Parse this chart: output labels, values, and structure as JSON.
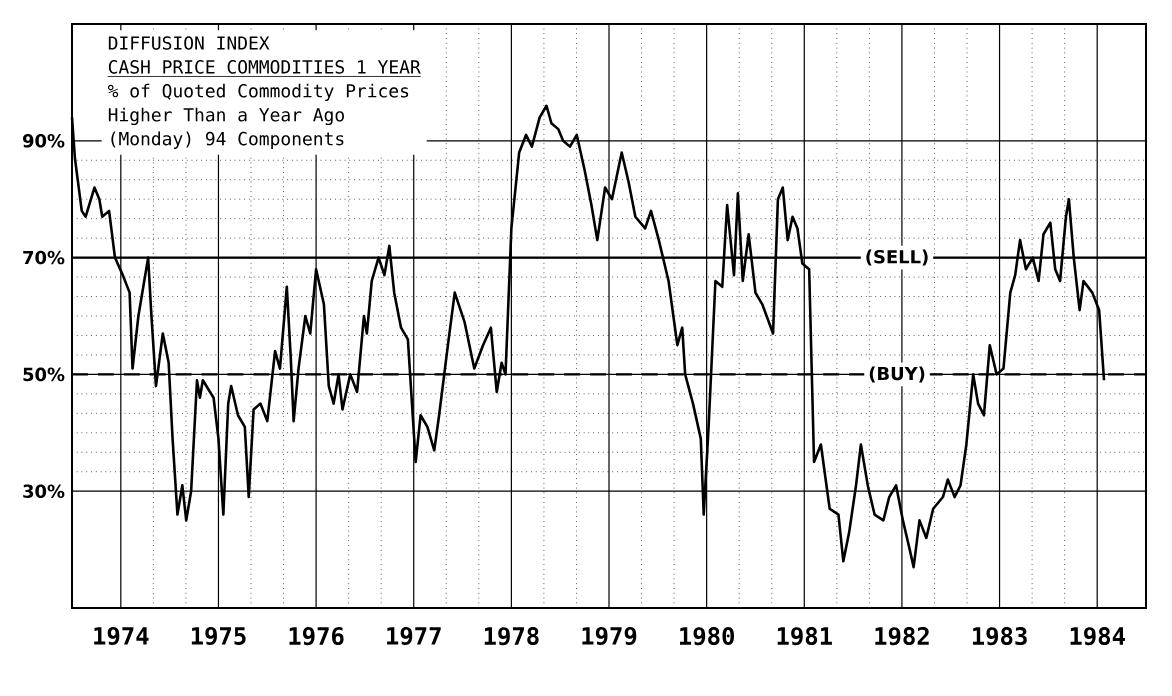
{
  "chart_data": {
    "type": "line",
    "title": "DIFFUSION INDEX",
    "subtitle": "CASH PRICE COMMODITIES 1 YEAR",
    "annotations": [
      "% of Quoted Commodity Prices",
      "Higher Than a Year Ago",
      "(Monday) 94 Components"
    ],
    "xlim": [
      1974,
      1985
    ],
    "ylim": [
      10,
      110
    ],
    "xticks": [
      {
        "value": 1974.5,
        "label": "1974"
      },
      {
        "value": 1975.5,
        "label": "1975"
      },
      {
        "value": 1976.5,
        "label": "1976"
      },
      {
        "value": 1977.5,
        "label": "1977"
      },
      {
        "value": 1978.5,
        "label": "1978"
      },
      {
        "value": 1979.5,
        "label": "1979"
      },
      {
        "value": 1980.5,
        "label": "1980"
      },
      {
        "value": 1981.5,
        "label": "1981"
      },
      {
        "value": 1982.5,
        "label": "1982"
      },
      {
        "value": 1983.5,
        "label": "1983"
      },
      {
        "value": 1984.5,
        "label": "1984"
      }
    ],
    "yticks": [
      {
        "value": 30,
        "label": "30%"
      },
      {
        "value": 50,
        "label": "50%"
      },
      {
        "value": 70,
        "label": "70%"
      },
      {
        "value": 90,
        "label": "90%"
      }
    ],
    "grid": true,
    "marker": "none",
    "line_style": "solid",
    "ref_lines": [
      {
        "axis": "y",
        "value": 70,
        "label": "(SELL)",
        "line_style": "solid",
        "color": "#000000"
      },
      {
        "axis": "y",
        "value": 50,
        "label": "(BUY)",
        "line_style": "dashed",
        "color": "#000000"
      }
    ],
    "series": [
      {
        "color": "#000000",
        "x": [
          1974.0,
          1974.03,
          1974.1,
          1974.14,
          1974.23,
          1974.28,
          1974.31,
          1974.38,
          1974.44,
          1974.52,
          1974.59,
          1974.62,
          1974.68,
          1974.78,
          1974.81,
          1974.86,
          1974.93,
          1974.99,
          1975.03,
          1975.08,
          1975.13,
          1975.17,
          1975.22,
          1975.28,
          1975.31,
          1975.34,
          1975.45,
          1975.5,
          1975.55,
          1975.6,
          1975.63,
          1975.7,
          1975.77,
          1975.81,
          1975.86,
          1975.93,
          1976.0,
          1976.08,
          1976.13,
          1976.2,
          1976.24,
          1976.27,
          1976.32,
          1976.39,
          1976.44,
          1976.5,
          1976.58,
          1976.63,
          1976.68,
          1976.73,
          1976.77,
          1976.85,
          1976.92,
          1976.99,
          1977.02,
          1977.07,
          1977.14,
          1977.2,
          1977.25,
          1977.3,
          1977.37,
          1977.44,
          1977.52,
          1977.57,
          1977.64,
          1977.71,
          1977.76,
          1977.85,
          1977.92,
          1978.02,
          1978.12,
          1978.21,
          1978.29,
          1978.35,
          1978.4,
          1978.44,
          1978.5,
          1978.58,
          1978.65,
          1978.71,
          1978.79,
          1978.86,
          1978.91,
          1978.98,
          1979.03,
          1979.1,
          1979.17,
          1979.25,
          1979.32,
          1979.38,
          1979.46,
          1979.53,
          1979.63,
          1979.7,
          1979.77,
          1979.87,
          1979.93,
          1980.01,
          1980.11,
          1980.2,
          1980.25,
          1980.28,
          1980.36,
          1980.44,
          1980.47,
          1980.52,
          1980.59,
          1980.66,
          1980.71,
          1980.78,
          1980.82,
          1980.87,
          1980.93,
          1981.0,
          1981.07,
          1981.18,
          1981.23,
          1981.28,
          1981.33,
          1981.38,
          1981.43,
          1981.48,
          1981.55,
          1981.6,
          1981.67,
          1981.76,
          1981.85,
          1981.9,
          1981.96,
          1982.03,
          1982.08,
          1982.15,
          1982.22,
          1982.31,
          1982.37,
          1982.44,
          1982.51,
          1982.58,
          1982.62,
          1982.68,
          1982.75,
          1982.82,
          1982.92,
          1982.97,
          1983.04,
          1983.1,
          1983.16,
          1983.23,
          1983.28,
          1983.34,
          1983.4,
          1983.47,
          1983.54,
          1983.61,
          1983.66,
          1983.71,
          1983.77,
          1983.84,
          1983.9,
          1983.95,
          1984.02,
          1984.07,
          1984.12,
          1984.18,
          1984.21,
          1984.26,
          1984.32,
          1984.36,
          1984.45,
          1984.52,
          1984.57
        ],
        "values": [
          94,
          87,
          78,
          77,
          82,
          80,
          77,
          78,
          70,
          67,
          64,
          51,
          60,
          70,
          61,
          48,
          57,
          52,
          39,
          26,
          31,
          25,
          30,
          49,
          46,
          49,
          46,
          39,
          26,
          45,
          48,
          43,
          41,
          29,
          44,
          45,
          42,
          54,
          51,
          65,
          53,
          42,
          51,
          60,
          57,
          68,
          62,
          48,
          45,
          50,
          44,
          50,
          47,
          60,
          57,
          66,
          70,
          67,
          72,
          64,
          58,
          56,
          35,
          43,
          41,
          37,
          43,
          55,
          64,
          59,
          51,
          55,
          58,
          47,
          52,
          50,
          75,
          88,
          91,
          89,
          94,
          96,
          93,
          92,
          90,
          89,
          91,
          85,
          79,
          73,
          82,
          80,
          88,
          83,
          77,
          75,
          78,
          73,
          66,
          55,
          58,
          50,
          45,
          39,
          26,
          41,
          66,
          65,
          79,
          67,
          81,
          66,
          74,
          64,
          62,
          57,
          80,
          82,
          73,
          77,
          75,
          69,
          68,
          35,
          38,
          27,
          26,
          18,
          23,
          31,
          38,
          31,
          26,
          25,
          29,
          31,
          25,
          20,
          17,
          25,
          22,
          27,
          29,
          32,
          29,
          31,
          38,
          50,
          45,
          43,
          55,
          50,
          51,
          64,
          67,
          73,
          68,
          70,
          66,
          74,
          76,
          68,
          66,
          77,
          80,
          70,
          61,
          66,
          64,
          61,
          49
        ]
      }
    ]
  }
}
